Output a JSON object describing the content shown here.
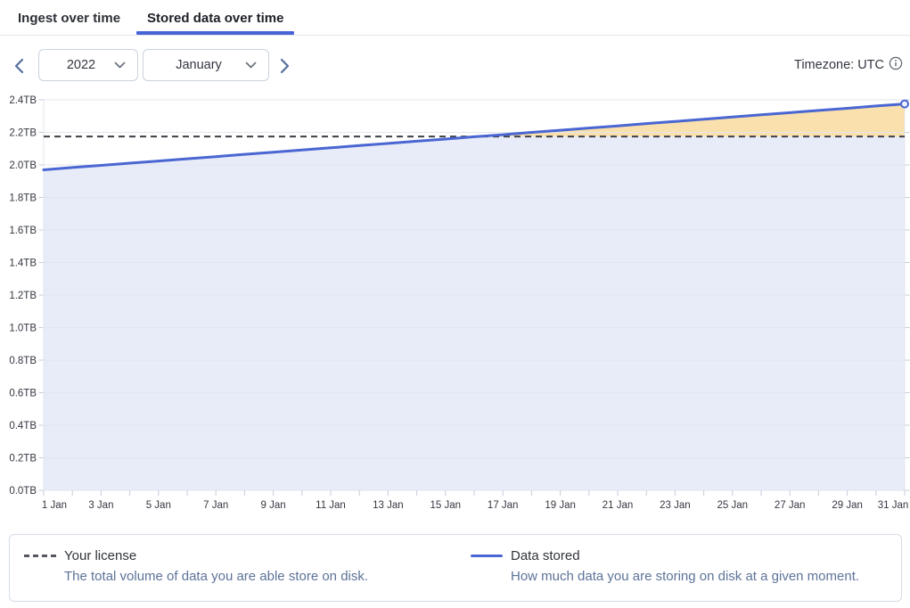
{
  "tabs": [
    {
      "label": "Ingest over time",
      "active": false
    },
    {
      "label": "Stored data over time",
      "active": true
    }
  ],
  "controls": {
    "prev_icon": "chevron-left",
    "next_icon": "chevron-right",
    "year_select": {
      "value": "2022"
    },
    "month_select": {
      "value": "January"
    },
    "timezone_label": "Timezone: UTC",
    "info_icon": "info-circle"
  },
  "chart_data": {
    "type": "area",
    "title": "Stored data over time",
    "xlabel": "",
    "ylabel": "",
    "unit": "TB",
    "ylim": [
      0,
      2.4
    ],
    "y_tick_step": 0.2,
    "grid": true,
    "legend_position": "bottom",
    "days": [
      1,
      2,
      3,
      4,
      5,
      6,
      7,
      8,
      9,
      10,
      11,
      12,
      13,
      14,
      15,
      16,
      17,
      18,
      19,
      20,
      21,
      22,
      23,
      24,
      25,
      26,
      27,
      28,
      29,
      30,
      31
    ],
    "x_tick_labels": [
      "1 Jan",
      "3 Jan",
      "5 Jan",
      "7 Jan",
      "9 Jan",
      "11 Jan",
      "13 Jan",
      "15 Jan",
      "17 Jan",
      "19 Jan",
      "21 Jan",
      "23 Jan",
      "25 Jan",
      "27 Jan",
      "29 Jan",
      "31 Jan"
    ],
    "y_tick_labels": [
      "0.0TB",
      "0.2TB",
      "0.4TB",
      "0.6TB",
      "0.8TB",
      "1.0TB",
      "1.2TB",
      "1.4TB",
      "1.6TB",
      "1.8TB",
      "2.0TB",
      "2.2TB",
      "2.4TB"
    ],
    "series": [
      {
        "name": "Data stored",
        "values": [
          1.97,
          1.984,
          1.997,
          2.011,
          2.024,
          2.038,
          2.051,
          2.065,
          2.078,
          2.092,
          2.105,
          2.119,
          2.132,
          2.146,
          2.159,
          2.173,
          2.186,
          2.2,
          2.213,
          2.227,
          2.24,
          2.254,
          2.267,
          2.281,
          2.294,
          2.308,
          2.321,
          2.335,
          2.348,
          2.362,
          2.375
        ]
      }
    ],
    "license": {
      "name": "Your license",
      "value": 2.175
    },
    "colors": {
      "line": "#4a66d2",
      "area": "#e8ecf9",
      "overage": "#f9e0ac",
      "license_line": "#3f4146",
      "grid": "#e2e6ee",
      "tick": "#c6ccd8",
      "axis_text": "#343741",
      "marker_fill": "#eef1fb"
    }
  },
  "legend": {
    "items": [
      {
        "swatch": "dashed-line",
        "title": "Your license",
        "description": "The total volume of data you are able store on disk."
      },
      {
        "swatch": "solid-line",
        "title": "Data stored",
        "description": "How much data you are storing on disk at a given moment."
      }
    ]
  }
}
